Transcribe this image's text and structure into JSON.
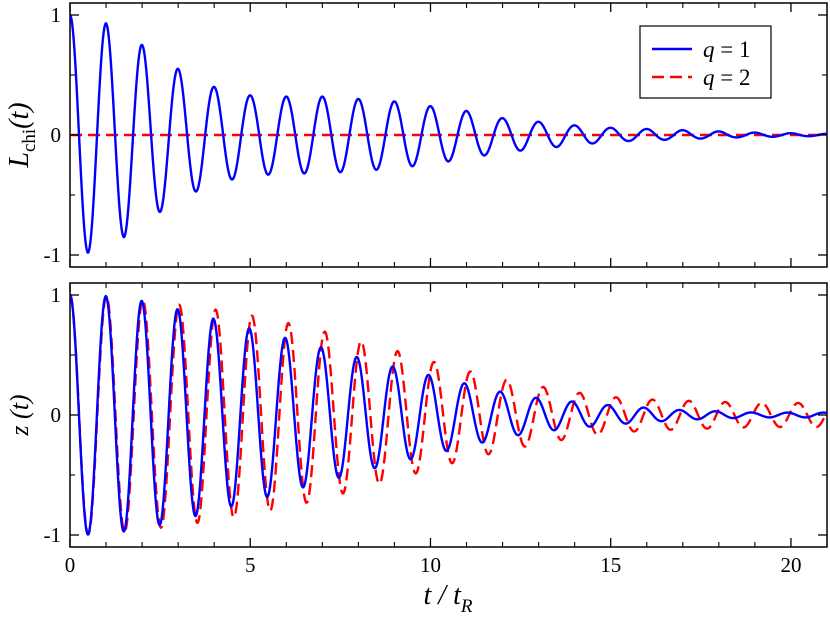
{
  "chart_data": [
    {
      "type": "line",
      "panel": "top",
      "ylabel_main": "L",
      "ylabel_sub": "chi",
      "ylabel_tail": "(t)",
      "xlim": [
        0,
        21
      ],
      "ylim": [
        -1.1,
        1.1
      ],
      "xticks": [
        0,
        5,
        10,
        15,
        20
      ],
      "yticks": [
        {
          "value": 1,
          "label": "1"
        },
        {
          "value": 0,
          "label": "0"
        },
        {
          "value": -1,
          "label": "-1"
        }
      ],
      "grid": false,
      "legend": "top-right",
      "legend_entries": [
        {
          "symbol": "q",
          "text": " = 1",
          "color": "#0000ff",
          "dash": "solid"
        },
        {
          "symbol": "q",
          "text": " = 2",
          "color": "#ff0000",
          "dash": "dashed"
        }
      ],
      "series": [
        {
          "name": "q = 1",
          "color": "#0000ff",
          "dash": "solid",
          "description": "damped oscillation, period 1, starting at 1; revival-like envelope",
          "peaks_x": [
            0,
            1,
            2,
            3,
            4,
            5,
            6,
            7,
            8,
            9,
            10,
            11,
            12,
            13,
            14,
            15,
            16,
            17,
            18,
            19,
            20,
            21
          ],
          "peaks_amplitude": [
            1.0,
            0.93,
            0.75,
            0.55,
            0.4,
            0.33,
            0.32,
            0.32,
            0.3,
            0.28,
            0.24,
            0.2,
            0.14,
            0.11,
            0.08,
            0.06,
            0.05,
            0.04,
            0.03,
            0.02,
            0.015,
            0.01
          ],
          "troughs_x": [
            0.5,
            1.5,
            2.5,
            3.5,
            4.5,
            5.5,
            6.5,
            7.5,
            8.5,
            9.5,
            10.5,
            11.5,
            12.5,
            13.5,
            14.5,
            15.5,
            16.5,
            17.5,
            18.5,
            19.5,
            20.5
          ],
          "troughs_amplitude": [
            -0.98,
            -0.85,
            -0.64,
            -0.47,
            -0.37,
            -0.33,
            -0.32,
            -0.31,
            -0.29,
            -0.26,
            -0.22,
            -0.17,
            -0.13,
            -0.1,
            -0.07,
            -0.05,
            -0.04,
            -0.03,
            -0.02,
            -0.015,
            -0.01
          ]
        },
        {
          "name": "q = 2",
          "color": "#ff0000",
          "dash": "dashed",
          "description": "identically zero",
          "constant_value": 0
        }
      ]
    },
    {
      "type": "line",
      "panel": "bottom",
      "ylabel_main": "z (t)",
      "xlabel_main": "t / t",
      "xlabel_sub": "R",
      "xlim": [
        0,
        21
      ],
      "ylim": [
        -1.1,
        1.1
      ],
      "xticks": [
        {
          "value": 0,
          "label": "0"
        },
        {
          "value": 5,
          "label": "5"
        },
        {
          "value": 10,
          "label": "10"
        },
        {
          "value": 15,
          "label": "15"
        },
        {
          "value": 20,
          "label": "20"
        }
      ],
      "yticks": [
        {
          "value": 1,
          "label": "1"
        },
        {
          "value": 0,
          "label": "0"
        },
        {
          "value": -1,
          "label": "-1"
        }
      ],
      "grid": false,
      "series": [
        {
          "name": "q = 1",
          "color": "#0000ff",
          "dash": "solid",
          "description": "damped oscillation, period ~0.995, decays to ~0 by t=21",
          "period": 0.995,
          "peaks_x": [
            0,
            1,
            2,
            3,
            4,
            5,
            6,
            7,
            8,
            9,
            10,
            11,
            12,
            13,
            14,
            15,
            16,
            17,
            18,
            19,
            20,
            21
          ],
          "peaks_amplitude": [
            1.0,
            0.99,
            0.95,
            0.88,
            0.8,
            0.72,
            0.64,
            0.56,
            0.48,
            0.4,
            0.33,
            0.26,
            0.19,
            0.14,
            0.11,
            0.08,
            0.06,
            0.04,
            0.03,
            0.02,
            0.02,
            0.02
          ]
        },
        {
          "name": "q = 2",
          "color": "#ff0000",
          "dash": "dashed",
          "description": "slower-decaying oscillation with slightly longer period, amplitude ~0.1 near t=21",
          "period": 1.01,
          "peaks_x": [
            0,
            1,
            2,
            3,
            4,
            5,
            6,
            7,
            8,
            9,
            10,
            11,
            12,
            13,
            14,
            15,
            16,
            17,
            18,
            19,
            20,
            21
          ],
          "peaks_amplitude": [
            1.0,
            0.99,
            0.96,
            0.92,
            0.88,
            0.83,
            0.77,
            0.7,
            0.62,
            0.54,
            0.45,
            0.37,
            0.3,
            0.24,
            0.19,
            0.15,
            0.13,
            0.12,
            0.11,
            0.1,
            0.1,
            0.1
          ]
        }
      ]
    }
  ]
}
